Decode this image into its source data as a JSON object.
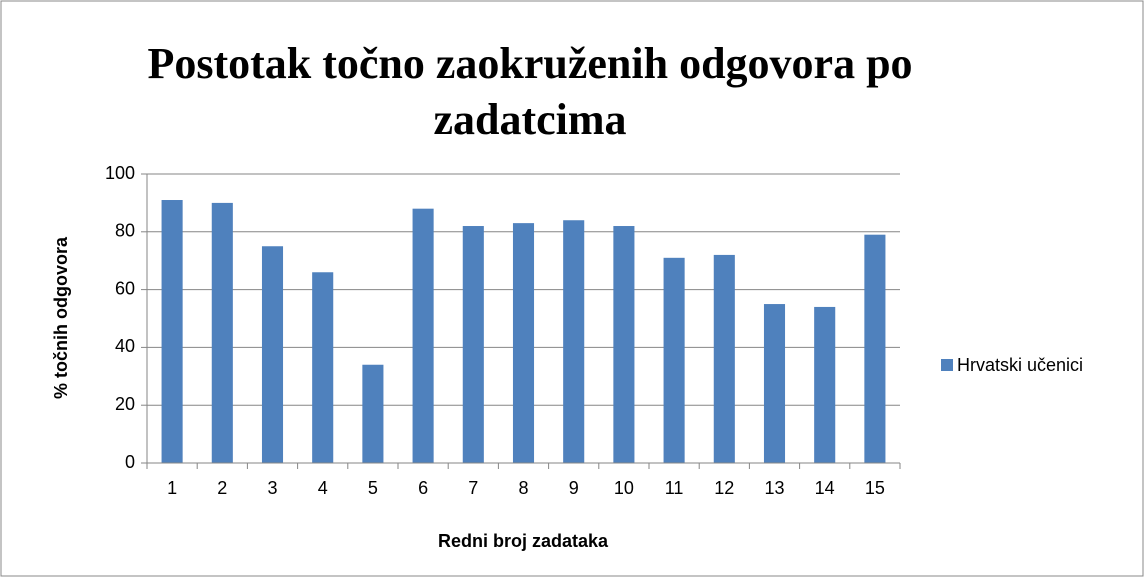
{
  "chart_data": {
    "type": "bar",
    "title": "Postotak točno zaokruženih odgovora po zadatcima",
    "x_label": "Redni broj zadataka",
    "y_label": "% točnih odgovora",
    "categories": [
      "1",
      "2",
      "3",
      "4",
      "5",
      "6",
      "7",
      "8",
      "9",
      "10",
      "11",
      "12",
      "13",
      "14",
      "15"
    ],
    "series": [
      {
        "name": "Hrvatski učenici",
        "color": "#4f81bd",
        "values": [
          91,
          90,
          75,
          66,
          34,
          88,
          82,
          83,
          84,
          82,
          71,
          72,
          55,
          54,
          79
        ]
      }
    ],
    "ylim": [
      0,
      100
    ],
    "yticks": [
      0,
      20,
      40,
      60,
      80,
      100
    ],
    "grid": true,
    "legend": "right"
  }
}
